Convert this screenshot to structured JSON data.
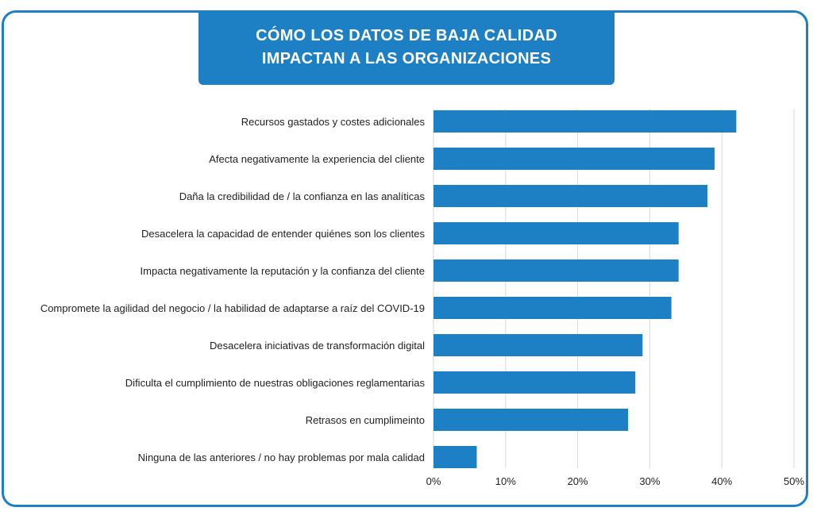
{
  "title": {
    "line1": "CÓMO LOS DATOS DE BAJA CALIDAD",
    "line2": "IMPACTAN A LAS ORGANIZACIONES"
  },
  "colors": {
    "accent": "#1d7fc4",
    "bar": "#1d7fc4",
    "grid": "#d9d9d9"
  },
  "chart_data": {
    "type": "bar",
    "orientation": "horizontal",
    "title": "CÓMO LOS DATOS DE BAJA CALIDAD IMPACTAN A LAS ORGANIZACIONES",
    "categories": [
      "Recursos gastados y costes adicionales",
      "Afecta negativamente la experiencia del cliente",
      "Daña la credibilidad de / la confianza en las analíticas",
      "Desacelera la capacidad de entender quiénes son los clientes",
      "Impacta negativamente la reputación y la confianza del cliente",
      "Compromete la agilidad del negocio / la habilidad de adaptarse a raíz del COVID-19",
      "Desacelera iniciativas de transformación digital",
      "Dificulta el cumplimiento de nuestras obligaciones reglamentarias",
      "Retrasos en cumplimeinto",
      "Ninguna de las anteriores / no hay problemas por mala calidad"
    ],
    "values": [
      42,
      39,
      38,
      34,
      34,
      33,
      29,
      28,
      27,
      6
    ],
    "xlim": [
      0,
      50
    ],
    "xticks": [
      0,
      10,
      20,
      30,
      40,
      50
    ],
    "xtick_labels": [
      "0%",
      "10%",
      "20%",
      "30%",
      "40%",
      "50%"
    ],
    "xlabel": "",
    "ylabel": "",
    "grid": true,
    "legend": "none"
  }
}
